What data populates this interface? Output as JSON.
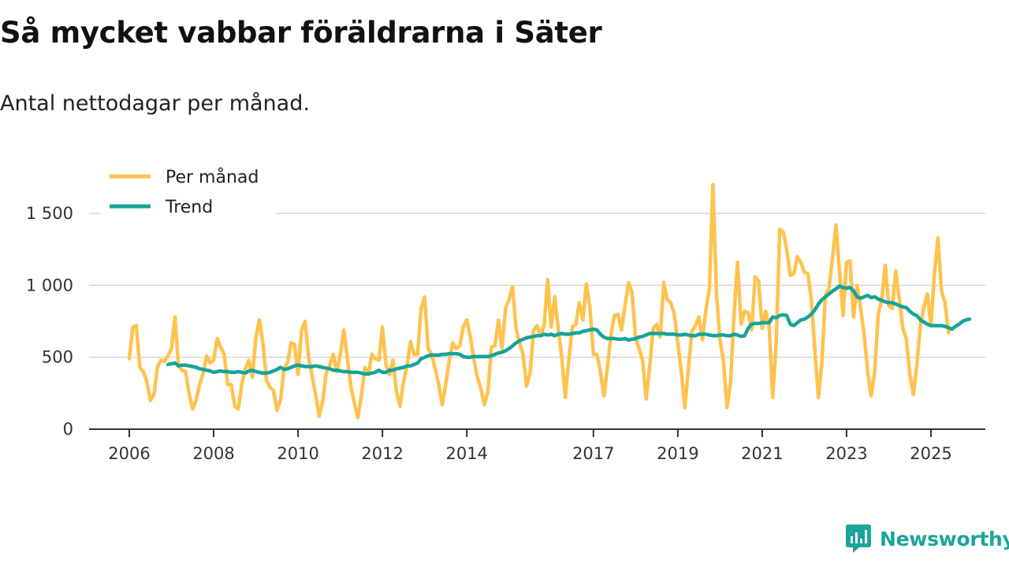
{
  "header": {
    "title": "Så mycket vabbar föräldrarna i Säter",
    "subtitle": "Antal nettodagar per månad."
  },
  "brand": {
    "name": "Newsworthy",
    "icon": "chart-logo-icon",
    "color": "#1ba59b"
  },
  "chart_data": {
    "type": "line",
    "title": "Så mycket vabbar föräldrarna i Säter",
    "subtitle": "Antal nettodagar per månad.",
    "xlabel": "",
    "ylabel": "",
    "ylim": [
      0,
      1500
    ],
    "y_ticks": [
      0,
      500,
      1000,
      1500
    ],
    "y_tick_labels": [
      "0",
      "500",
      "1 000",
      "1 500"
    ],
    "x_ticks": [
      2006,
      2008,
      2010,
      2012,
      2014,
      2017,
      2019,
      2021,
      2023,
      2025
    ],
    "x_tick_labels": [
      "2006",
      "2008",
      "2010",
      "2012",
      "2014",
      "2017",
      "2019",
      "2021",
      "2023",
      "2025"
    ],
    "grid": true,
    "legend_position": "top-left",
    "series": [
      {
        "name": "Per månad",
        "color": "#ffc24d",
        "x_start": 2006.0,
        "step": 0.08333,
        "values": [
          490,
          710,
          720,
          430,
          400,
          330,
          200,
          240,
          430,
          480,
          470,
          510,
          560,
          780,
          440,
          410,
          400,
          250,
          140,
          200,
          310,
          390,
          510,
          460,
          480,
          630,
          570,
          520,
          310,
          310,
          160,
          140,
          310,
          420,
          480,
          360,
          640,
          760,
          600,
          340,
          290,
          270,
          130,
          200,
          420,
          460,
          600,
          590,
          380,
          690,
          750,
          500,
          370,
          240,
          90,
          190,
          390,
          440,
          520,
          400,
          520,
          690,
          500,
          300,
          180,
          80,
          230,
          430,
          380,
          520,
          490,
          480,
          710,
          450,
          380,
          480,
          260,
          160,
          330,
          440,
          610,
          520,
          520,
          840,
          920,
          560,
          520,
          420,
          310,
          170,
          310,
          480,
          600,
          560,
          580,
          710,
          760,
          640,
          490,
          360,
          280,
          170,
          260,
          570,
          580,
          760,
          560,
          840,
          900,
          990,
          700,
          600,
          520,
          300,
          390,
          690,
          720,
          650,
          720,
          1040,
          710,
          920,
          700,
          500,
          220,
          480,
          710,
          730,
          880,
          760,
          1010,
          850,
          520,
          520,
          400,
          230,
          430,
          660,
          790,
          800,
          690,
          860,
          1020,
          950,
          630,
          560,
          480,
          210,
          430,
          700,
          730,
          640,
          1020,
          900,
          880,
          800,
          600,
          400,
          150,
          410,
          680,
          720,
          780,
          620,
          830,
          980,
          1700,
          940,
          630,
          470,
          150,
          320,
          800,
          1160,
          730,
          820,
          810,
          690,
          1060,
          1030,
          700,
          820,
          710,
          220,
          600,
          1390,
          1370,
          1250,
          1070,
          1080,
          1200,
          1160,
          1090,
          1080,
          900,
          540,
          220,
          470,
          930,
          980,
          1190,
          1420,
          1100,
          790,
          1160,
          1170,
          780,
          1000,
          840,
          660,
          400,
          230,
          400,
          800,
          900,
          1140,
          860,
          840,
          1100,
          900,
          700,
          630,
          380,
          240,
          450,
          720,
          850,
          940,
          720,
          1080,
          1330,
          960,
          880,
          670
        ]
      },
      {
        "name": "Trend",
        "color": "#17a398",
        "x_start": 2006.9167,
        "step": 0.08333,
        "values": [
          450,
          455,
          460,
          440,
          445,
          445,
          440,
          435,
          430,
          420,
          415,
          410,
          405,
          395,
          400,
          405,
          400,
          400,
          395,
          395,
          400,
          395,
          390,
          405,
          410,
          400,
          395,
          390,
          390,
          395,
          405,
          415,
          430,
          415,
          420,
          430,
          440,
          445,
          440,
          435,
          435,
          435,
          440,
          435,
          430,
          425,
          420,
          410,
          410,
          405,
          400,
          400,
          395,
          395,
          395,
          390,
          385,
          385,
          390,
          395,
          410,
          395,
          395,
          410,
          410,
          420,
          425,
          430,
          440,
          440,
          450,
          460,
          490,
          500,
          510,
          515,
          515,
          515,
          520,
          520,
          525,
          525,
          525,
          520,
          505,
          500,
          500,
          505,
          505,
          505,
          505,
          505,
          510,
          520,
          530,
          535,
          545,
          560,
          580,
          600,
          615,
          625,
          635,
          640,
          645,
          650,
          650,
          660,
          655,
          660,
          650,
          660,
          665,
          660,
          660,
          665,
          670,
          670,
          680,
          685,
          690,
          695,
          690,
          660,
          640,
          630,
          630,
          630,
          625,
          625,
          630,
          620,
          625,
          630,
          640,
          645,
          655,
          665,
          665,
          665,
          665,
          665,
          660,
          660,
          660,
          655,
          655,
          660,
          655,
          650,
          650,
          660,
          660,
          660,
          655,
          650,
          650,
          655,
          655,
          650,
          650,
          660,
          655,
          645,
          650,
          700,
          730,
          735,
          735,
          740,
          740,
          740,
          780,
          775,
          790,
          795,
          790,
          730,
          720,
          740,
          760,
          765,
          780,
          800,
          830,
          870,
          900,
          920,
          940,
          960,
          975,
          995,
          985,
          980,
          985,
          960,
          920,
          910,
          920,
          930,
          915,
          920,
          905,
          895,
          885,
          880,
          880,
          870,
          860,
          850,
          845,
          820,
          800,
          790,
          760,
          745,
          730,
          720,
          720,
          720,
          720,
          715,
          705,
          695,
          715,
          730,
          750,
          760,
          765
        ]
      }
    ]
  }
}
